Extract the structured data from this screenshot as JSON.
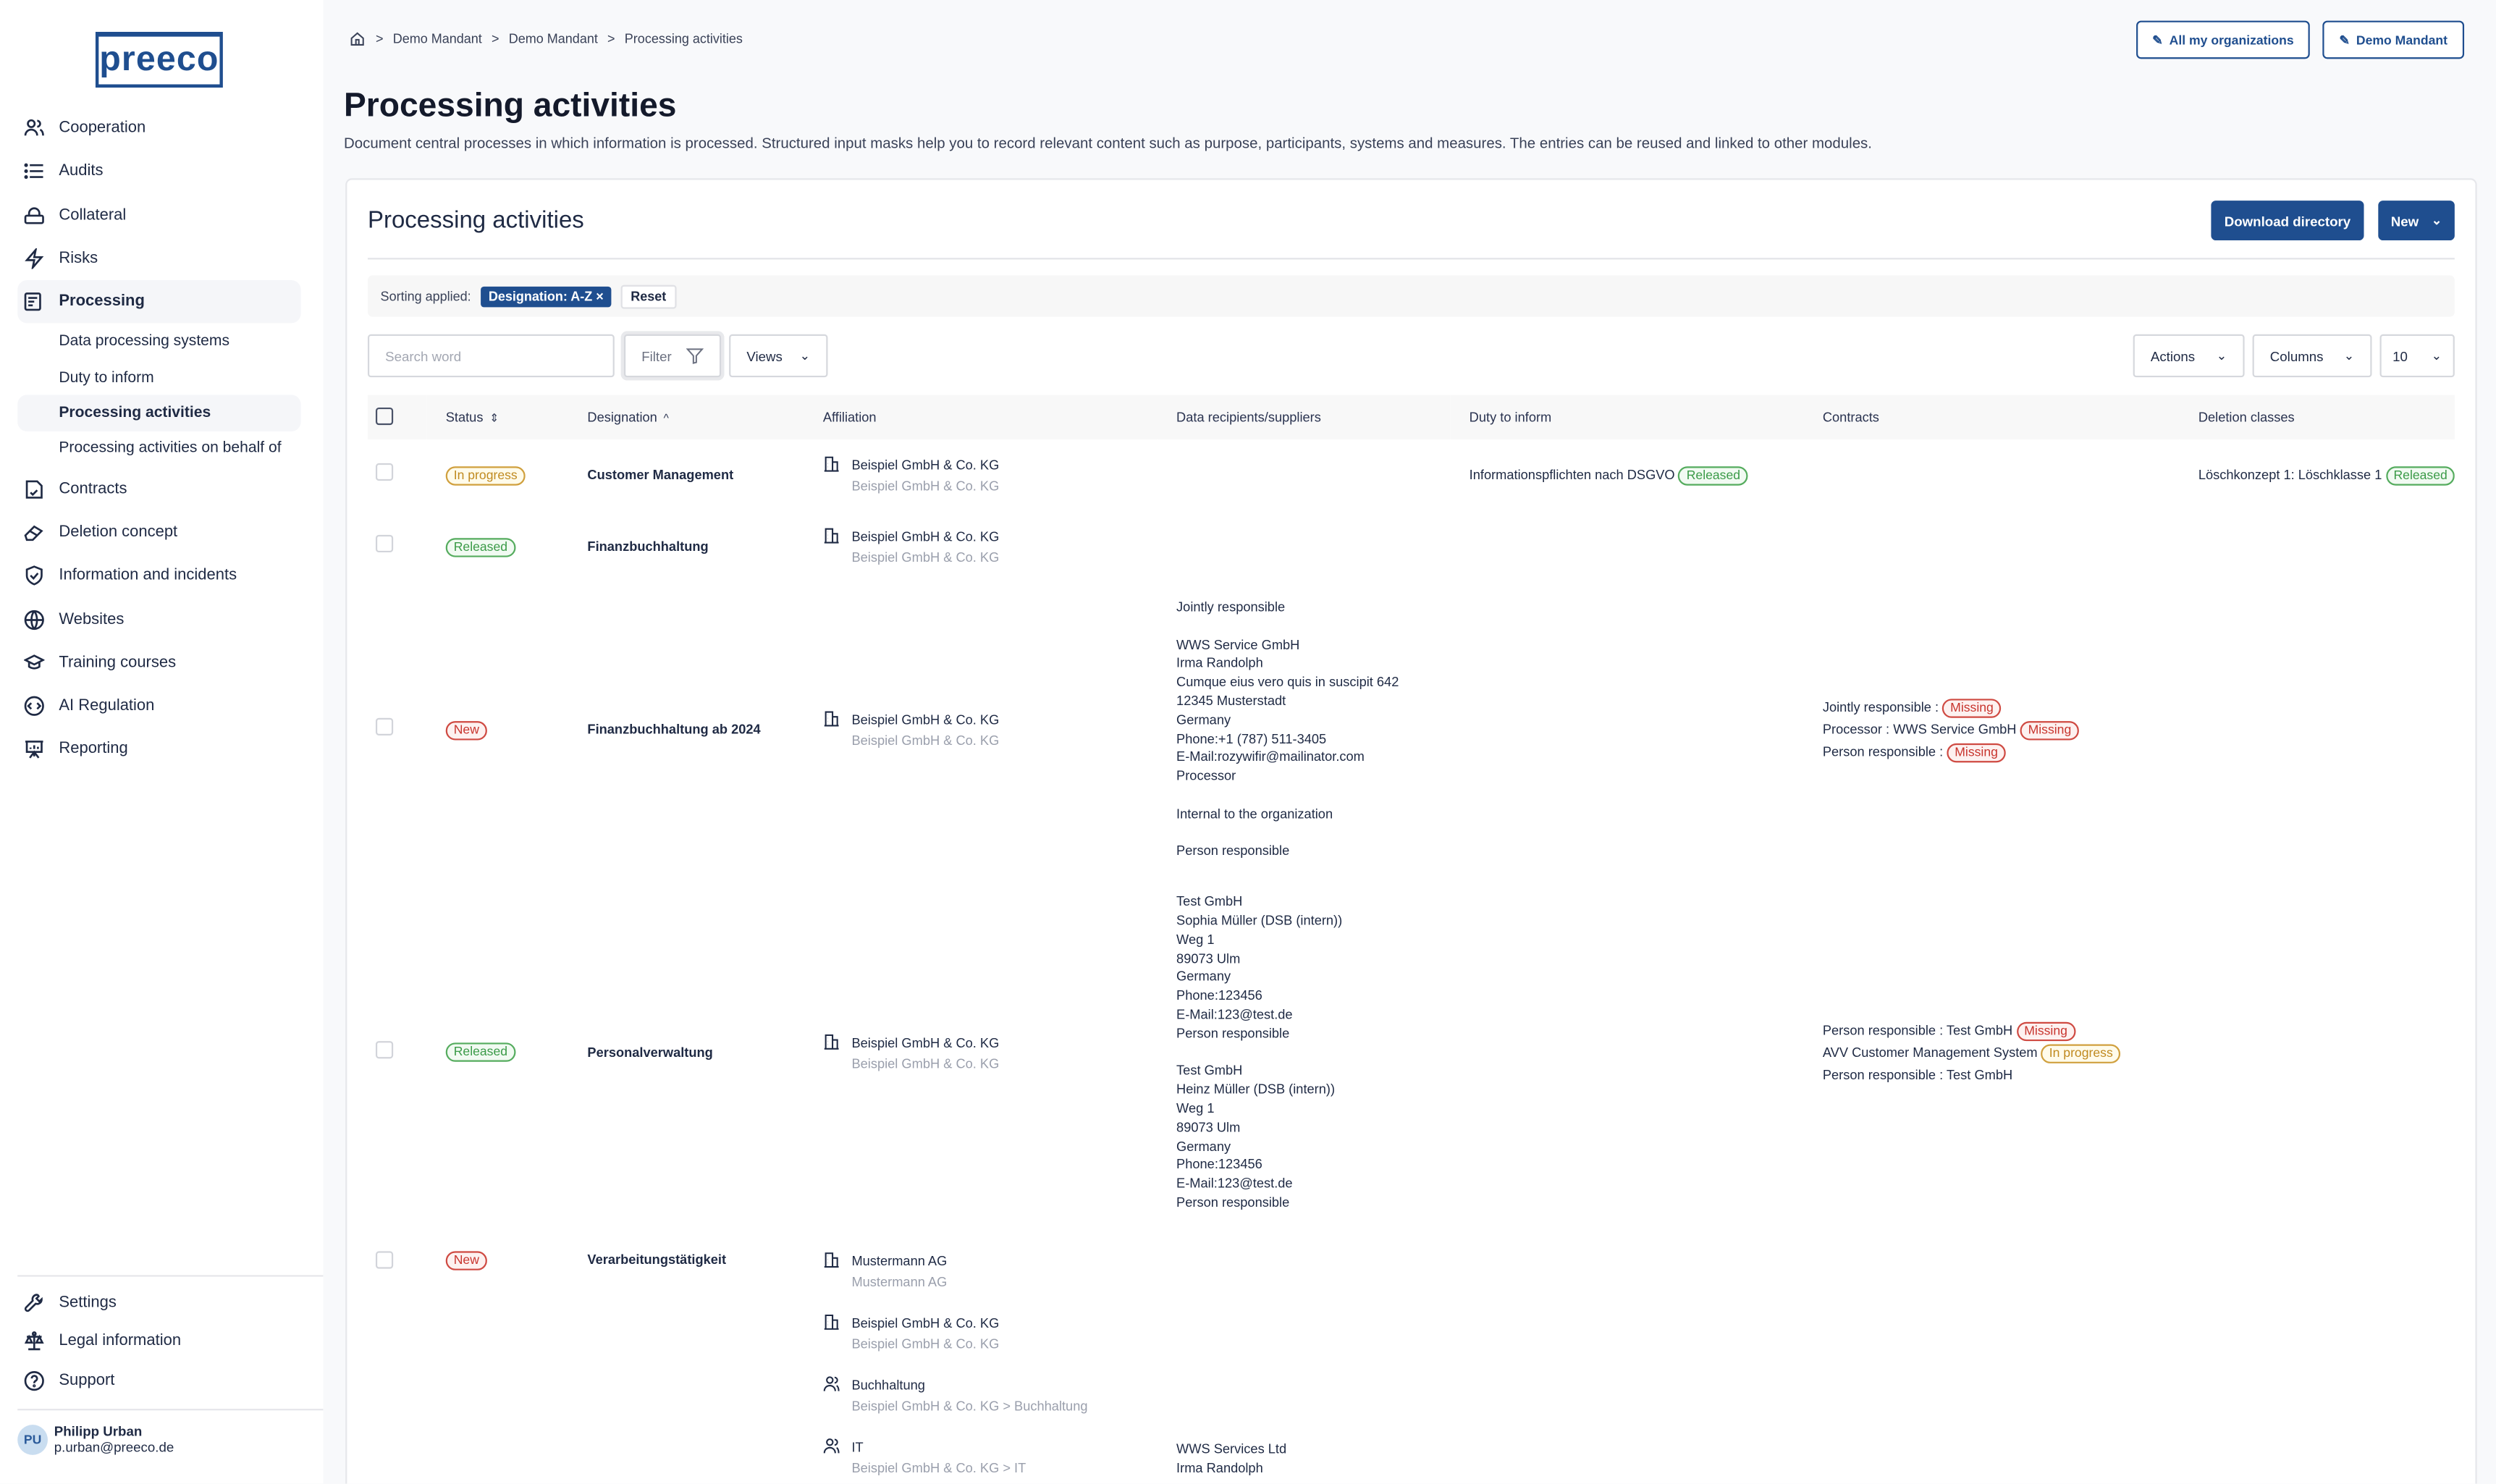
{
  "brand": {
    "logo": "preeco",
    "color": "#1f4e8f"
  },
  "sidebar": {
    "items": [
      {
        "label": "Cooperation",
        "icon": "users-icon"
      },
      {
        "label": "Audits",
        "icon": "list-icon"
      },
      {
        "label": "Collateral",
        "icon": "lock-icon"
      },
      {
        "label": "Risks",
        "icon": "lightning-icon"
      },
      {
        "label": "Processing",
        "icon": "processing-icon",
        "active": true
      },
      {
        "label": "Contracts",
        "icon": "contract-icon"
      },
      {
        "label": "Deletion concept",
        "icon": "eraser-icon"
      },
      {
        "label": "Information and incidents",
        "icon": "shield-check-icon"
      },
      {
        "label": "Websites",
        "icon": "globe-icon"
      },
      {
        "label": "Training courses",
        "icon": "graduation-cap-icon"
      },
      {
        "label": "AI Regulation",
        "icon": "code-icon"
      },
      {
        "label": "Reporting",
        "icon": "presentation-icon"
      }
    ],
    "subitems": [
      "Data processing systems",
      "Duty to inform",
      "Processing activities",
      "Processing activities on behalf of"
    ],
    "active_sub": "Processing activities",
    "bottom": [
      {
        "label": "Settings",
        "icon": "wrench-icon"
      },
      {
        "label": "Legal information",
        "icon": "scales-icon"
      },
      {
        "label": "Support",
        "icon": "help-icon"
      }
    ],
    "user": {
      "initials": "PU",
      "name": "Philipp Urban",
      "email": "p.urban@preeco.de"
    }
  },
  "breadcrumb": [
    "Demo Mandant",
    "Demo Mandant",
    "Processing activities"
  ],
  "header": {
    "all_orgs": "All my organizations",
    "mandant": "Demo Mandant",
    "title": "Processing activities",
    "description": "Document central processes in which information is processed. Structured input masks help you to record relevant content such as purpose, participants, systems and measures. The entries can be reused and linked to other modules."
  },
  "card": {
    "title": "Processing activities",
    "download": "Download directory",
    "new": "New",
    "sorting_label": "Sorting applied:",
    "sorting_chip": "Designation: A-Z",
    "reset": "Reset",
    "search_placeholder": "Search word",
    "filter": "Filter",
    "views": "Views",
    "actions": "Actions",
    "columns": "Columns",
    "page_size": "10"
  },
  "table": {
    "headers": [
      "Status",
      "Designation",
      "Affiliation",
      "Data recipients/suppliers",
      "Duty to inform",
      "Contracts",
      "Deletion classes"
    ],
    "rows": [
      {
        "status": "In progress",
        "designation": "Customer Management",
        "affiliation": [
          {
            "icon": "building-icon",
            "name": "Beispiel GmbH & Co. KG",
            "sub": "Beispiel GmbH & Co. KG"
          }
        ],
        "recipients": [],
        "duty": {
          "text": "Informationspflichten nach DSGVO",
          "badge": "Released"
        },
        "contracts": [],
        "deletion": {
          "text": "Löschkonzept 1: Löschklasse 1",
          "badge": "Released"
        }
      },
      {
        "status": "Released",
        "designation": "Finanzbuchhaltung",
        "affiliation": [
          {
            "icon": "building-icon",
            "name": "Beispiel GmbH & Co. KG",
            "sub": "Beispiel GmbH & Co. KG"
          }
        ],
        "recipients": [],
        "duty": null,
        "contracts": [],
        "deletion": null
      },
      {
        "status": "New",
        "designation": "Finanzbuchhaltung ab 2024",
        "affiliation": [
          {
            "icon": "building-icon",
            "name": "Beispiel GmbH & Co. KG",
            "sub": "Beispiel GmbH & Co. KG"
          }
        ],
        "recipients": [
          "Jointly responsible",
          "",
          "WWS Service GmbH",
          "Irma Randolph",
          "Cumque eius vero quis in suscipit 642",
          "12345 Musterstadt",
          "Germany",
          "Phone:+1 (787) 511-3405",
          "E-Mail:rozywifir@mailinator.com",
          "Processor",
          "",
          "Internal to the organization",
          "",
          "Person responsible"
        ],
        "duty": null,
        "contracts": [
          {
            "text": "Jointly responsible :",
            "badge": "Missing"
          },
          {
            "text": "Processor : WWS Service GmbH",
            "badge": "Missing"
          },
          {
            "text": "Person responsible :",
            "badge": "Missing"
          }
        ],
        "deletion": null
      },
      {
        "status": "Released",
        "designation": "Personalverwaltung",
        "affiliation": [
          {
            "icon": "building-icon",
            "name": "Beispiel GmbH & Co. KG",
            "sub": "Beispiel GmbH & Co. KG"
          }
        ],
        "recipients": [
          "Test GmbH",
          "Sophia Müller (DSB (intern))",
          "Weg 1",
          "89073 Ulm",
          "Germany",
          "Phone:123456",
          "E-Mail:123@test.de",
          "Person responsible",
          "",
          "Test GmbH",
          "Heinz Müller (DSB (intern))",
          "Weg 1",
          "89073 Ulm",
          "Germany",
          "Phone:123456",
          "E-Mail:123@test.de",
          "Person responsible"
        ],
        "duty": null,
        "contracts": [
          {
            "text": "Person responsible : Test GmbH",
            "badge": "Missing"
          },
          {
            "text": "AVV Customer Management System",
            "badge": "In progress"
          },
          {
            "text": "Person responsible : Test GmbH",
            "badge": null
          }
        ],
        "deletion": null
      },
      {
        "status": "New",
        "designation": "Verarbeitungstätigkeit",
        "affiliation": [
          {
            "icon": "building-icon",
            "name": "Mustermann AG",
            "sub": "Mustermann AG"
          },
          {
            "icon": "building-icon",
            "name": "Beispiel GmbH & Co. KG",
            "sub": "Beispiel GmbH & Co. KG"
          },
          {
            "icon": "people-icon",
            "name": "Buchhaltung",
            "sub": "Beispiel GmbH & Co. KG > Buchhaltung"
          },
          {
            "icon": "people-icon",
            "name": "IT",
            "sub": "Beispiel GmbH & Co. KG > IT"
          }
        ],
        "recipients": [
          "WWS Services Ltd",
          "Irma Randolph"
        ],
        "duty": null,
        "contracts": [],
        "deletion": null
      }
    ]
  },
  "status_colors": {
    "In progress": "#c08a1f",
    "Released": "#3a9a47",
    "New": "#c8352e",
    "Missing": "#c8352e"
  }
}
